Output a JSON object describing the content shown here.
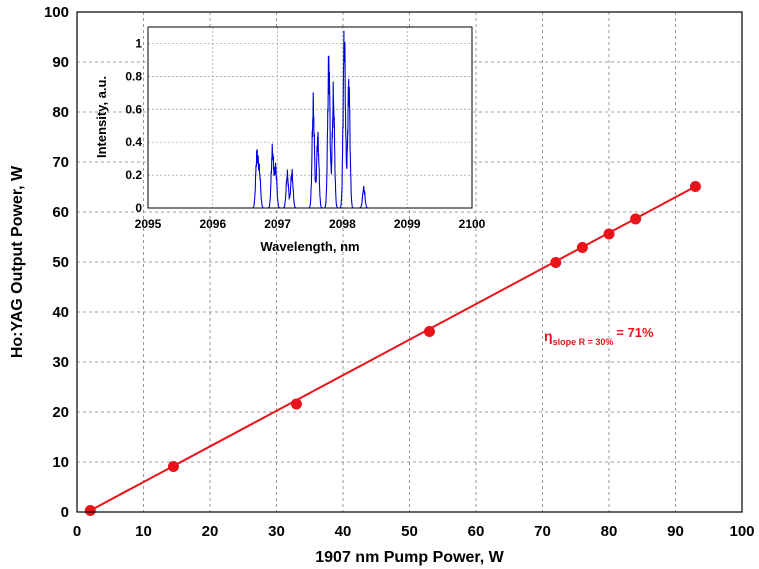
{
  "chart_data": [
    {
      "type": "scatter",
      "xlabel": "1907 nm Pump Power, W",
      "ylabel": "Ho:YAG Output Power, W",
      "xlim": [
        0,
        100
      ],
      "ylim": [
        0,
        100
      ],
      "xticks": [
        0,
        10,
        20,
        30,
        40,
        50,
        60,
        70,
        80,
        90,
        100
      ],
      "yticks": [
        0,
        10,
        20,
        30,
        40,
        50,
        60,
        70,
        80,
        90,
        100
      ],
      "grid": true,
      "color": "#e8141a",
      "series": [
        {
          "x": [
            2,
            14.5,
            33,
            53,
            72,
            76,
            80,
            84,
            93
          ],
          "y": [
            0.3,
            9.1,
            21.6,
            36.1,
            49.9,
            52.9,
            55.6,
            58.6,
            65.1
          ]
        }
      ],
      "fit_line": {
        "x": [
          2,
          93
        ],
        "y": [
          0.3,
          65.1
        ]
      },
      "annotation": {
        "symbol": "η",
        "subscript": "slope R = 30%",
        "text": "= 71%"
      }
    },
    {
      "type": "line",
      "xlabel": "Wavelength, nm",
      "ylabel": "Intensity, a.u.",
      "xlim": [
        2095,
        2100
      ],
      "ylim": [
        0,
        1.1
      ],
      "xticks": [
        2095,
        2096,
        2097,
        2098,
        2099,
        2100
      ],
      "yticks": [
        0,
        0.2,
        0.4,
        0.6,
        0.8,
        1
      ],
      "grid": true,
      "color": "#0000dd",
      "peaks": [
        {
          "x": 2096.68,
          "h": 0.31
        },
        {
          "x": 2096.72,
          "h": 0.21
        },
        {
          "x": 2096.92,
          "h": 0.34
        },
        {
          "x": 2096.97,
          "h": 0.24
        },
        {
          "x": 2097.15,
          "h": 0.2
        },
        {
          "x": 2097.22,
          "h": 0.21
        },
        {
          "x": 2097.55,
          "h": 0.61
        },
        {
          "x": 2097.62,
          "h": 0.42
        },
        {
          "x": 2097.79,
          "h": 0.87
        },
        {
          "x": 2097.86,
          "h": 0.66
        },
        {
          "x": 2098.03,
          "h": 1.0
        },
        {
          "x": 2098.1,
          "h": 0.73
        },
        {
          "x": 2098.33,
          "h": 0.12
        }
      ]
    }
  ]
}
